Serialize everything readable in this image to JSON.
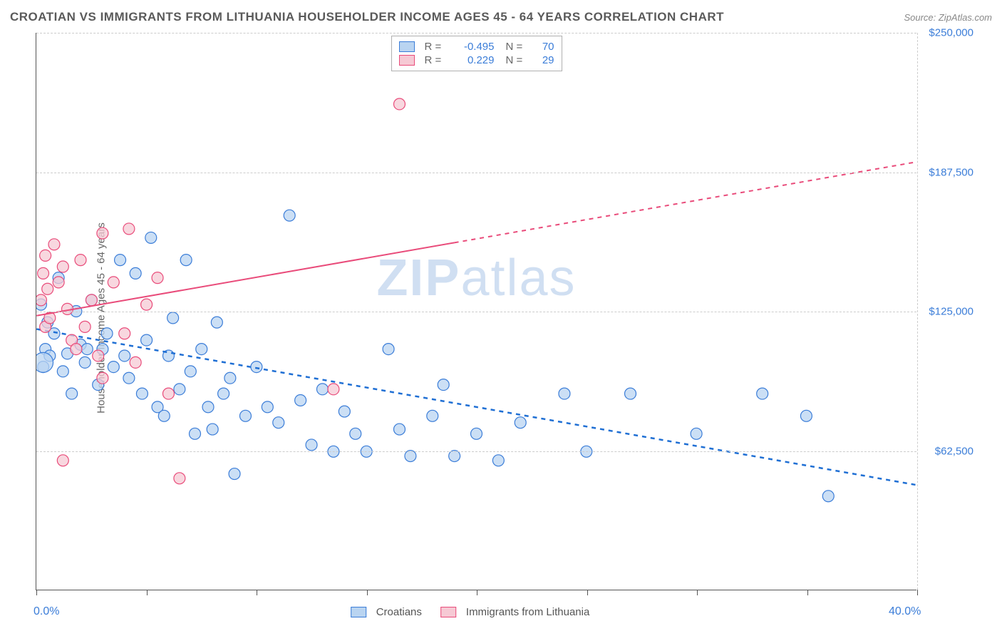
{
  "title": "CROATIAN VS IMMIGRANTS FROM LITHUANIA HOUSEHOLDER INCOME AGES 45 - 64 YEARS CORRELATION CHART",
  "source": "Source: ZipAtlas.com",
  "y_label": "Householder Income Ages 45 - 64 years",
  "watermark_bold": "ZIP",
  "watermark_rest": "atlas",
  "chart": {
    "type": "scatter-with-trend",
    "background_color": "#ffffff",
    "grid_color": "#cccccc",
    "axis_color": "#555555",
    "title_color": "#5a5a5a",
    "title_fontsize": 17,
    "label_fontsize": 15,
    "xlim": [
      0,
      40
    ],
    "ylim": [
      0,
      250000
    ],
    "x_ticks": [
      0,
      5,
      10,
      15,
      20,
      25,
      30,
      35,
      40
    ],
    "x_tick_labels_shown": {
      "0": "0.0%",
      "40": "40.0%"
    },
    "y_gridlines": [
      62500,
      125000,
      187500,
      250000
    ],
    "y_tick_labels": {
      "62500": "$62,500",
      "125000": "$125,000",
      "187500": "$187,500",
      "250000": "$250,000"
    },
    "tick_label_color": "#3b7dd8",
    "series": [
      {
        "name": "Croatians",
        "marker_color_fill": "#b9d4f1",
        "marker_color_stroke": "#3b7dd8",
        "marker_radius": 8,
        "marker_opacity": 0.75,
        "trend_color": "#1f6fd4",
        "trend_width": 2.5,
        "R": -0.495,
        "N": 70,
        "trend_start": {
          "x": 0,
          "y": 117000
        },
        "trend_end": {
          "x": 40,
          "y": 47000
        },
        "trend_extrapolate_from_x": 0,
        "points": [
          {
            "x": 0.2,
            "y": 128000
          },
          {
            "x": 0.3,
            "y": 100000
          },
          {
            "x": 0.4,
            "y": 108000
          },
          {
            "x": 0.5,
            "y": 120000
          },
          {
            "x": 0.6,
            "y": 105000
          },
          {
            "x": 0.8,
            "y": 115000
          },
          {
            "x": 1.0,
            "y": 140000
          },
          {
            "x": 1.2,
            "y": 98000
          },
          {
            "x": 1.4,
            "y": 106000
          },
          {
            "x": 1.6,
            "y": 88000
          },
          {
            "x": 1.8,
            "y": 125000
          },
          {
            "x": 2.0,
            "y": 110000
          },
          {
            "x": 2.2,
            "y": 102000
          },
          {
            "x": 2.5,
            "y": 130000
          },
          {
            "x": 2.8,
            "y": 92000
          },
          {
            "x": 3.0,
            "y": 108000
          },
          {
            "x": 3.2,
            "y": 115000
          },
          {
            "x": 3.5,
            "y": 100000
          },
          {
            "x": 3.8,
            "y": 148000
          },
          {
            "x": 4.0,
            "y": 105000
          },
          {
            "x": 4.2,
            "y": 95000
          },
          {
            "x": 4.5,
            "y": 142000
          },
          {
            "x": 4.8,
            "y": 88000
          },
          {
            "x": 5.0,
            "y": 112000
          },
          {
            "x": 5.2,
            "y": 158000
          },
          {
            "x": 5.5,
            "y": 82000
          },
          {
            "x": 5.8,
            "y": 78000
          },
          {
            "x": 6.0,
            "y": 105000
          },
          {
            "x": 6.2,
            "y": 122000
          },
          {
            "x": 6.5,
            "y": 90000
          },
          {
            "x": 6.8,
            "y": 148000
          },
          {
            "x": 7.0,
            "y": 98000
          },
          {
            "x": 7.2,
            "y": 70000
          },
          {
            "x": 7.5,
            "y": 108000
          },
          {
            "x": 7.8,
            "y": 82000
          },
          {
            "x": 8.0,
            "y": 72000
          },
          {
            "x": 8.2,
            "y": 120000
          },
          {
            "x": 8.5,
            "y": 88000
          },
          {
            "x": 8.8,
            "y": 95000
          },
          {
            "x": 9.0,
            "y": 52000
          },
          {
            "x": 9.5,
            "y": 78000
          },
          {
            "x": 10.0,
            "y": 100000
          },
          {
            "x": 10.5,
            "y": 82000
          },
          {
            "x": 11.0,
            "y": 75000
          },
          {
            "x": 11.5,
            "y": 168000
          },
          {
            "x": 12.0,
            "y": 85000
          },
          {
            "x": 12.5,
            "y": 65000
          },
          {
            "x": 13.0,
            "y": 90000
          },
          {
            "x": 13.5,
            "y": 62000
          },
          {
            "x": 14.0,
            "y": 80000
          },
          {
            "x": 14.5,
            "y": 70000
          },
          {
            "x": 15.0,
            "y": 62000
          },
          {
            "x": 16.0,
            "y": 108000
          },
          {
            "x": 16.5,
            "y": 72000
          },
          {
            "x": 17.0,
            "y": 60000
          },
          {
            "x": 18.0,
            "y": 78000
          },
          {
            "x": 18.5,
            "y": 92000
          },
          {
            "x": 19.0,
            "y": 60000
          },
          {
            "x": 20.0,
            "y": 70000
          },
          {
            "x": 21.0,
            "y": 58000
          },
          {
            "x": 22.0,
            "y": 75000
          },
          {
            "x": 24.0,
            "y": 88000
          },
          {
            "x": 25.0,
            "y": 62000
          },
          {
            "x": 27.0,
            "y": 88000
          },
          {
            "x": 30.0,
            "y": 70000
          },
          {
            "x": 33.0,
            "y": 88000
          },
          {
            "x": 35.0,
            "y": 78000
          },
          {
            "x": 36.0,
            "y": 42000
          },
          {
            "x": 0.3,
            "y": 102000,
            "r": 14
          },
          {
            "x": 2.3,
            "y": 108000
          }
        ]
      },
      {
        "name": "Immigrants from Lithuania",
        "marker_color_fill": "#f6c9d4",
        "marker_color_stroke": "#e94b7a",
        "marker_radius": 8,
        "marker_opacity": 0.75,
        "trend_color": "#e94b7a",
        "trend_width": 2,
        "R": 0.229,
        "N": 29,
        "trend_start": {
          "x": 0,
          "y": 123000
        },
        "trend_end": {
          "x": 40,
          "y": 192000
        },
        "trend_extrapolate_from_x": 19,
        "points": [
          {
            "x": 0.2,
            "y": 130000
          },
          {
            "x": 0.3,
            "y": 142000
          },
          {
            "x": 0.4,
            "y": 118000
          },
          {
            "x": 0.5,
            "y": 135000
          },
          {
            "x": 0.6,
            "y": 122000
          },
          {
            "x": 0.8,
            "y": 155000
          },
          {
            "x": 1.0,
            "y": 138000
          },
          {
            "x": 1.2,
            "y": 145000
          },
          {
            "x": 1.4,
            "y": 126000
          },
          {
            "x": 1.6,
            "y": 112000
          },
          {
            "x": 1.8,
            "y": 108000
          },
          {
            "x": 2.0,
            "y": 148000
          },
          {
            "x": 2.2,
            "y": 118000
          },
          {
            "x": 2.5,
            "y": 130000
          },
          {
            "x": 2.8,
            "y": 105000
          },
          {
            "x": 3.0,
            "y": 160000
          },
          {
            "x": 3.0,
            "y": 95000
          },
          {
            "x": 3.5,
            "y": 138000
          },
          {
            "x": 4.0,
            "y": 115000
          },
          {
            "x": 4.2,
            "y": 162000
          },
          {
            "x": 4.5,
            "y": 102000
          },
          {
            "x": 5.0,
            "y": 128000
          },
          {
            "x": 5.5,
            "y": 140000
          },
          {
            "x": 6.0,
            "y": 88000
          },
          {
            "x": 6.5,
            "y": 50000
          },
          {
            "x": 1.2,
            "y": 58000
          },
          {
            "x": 13.5,
            "y": 90000
          },
          {
            "x": 16.5,
            "y": 218000
          },
          {
            "x": 0.4,
            "y": 150000
          }
        ]
      }
    ],
    "legend_bottom": [
      {
        "label": "Croatians",
        "fill": "#b9d4f1",
        "stroke": "#3b7dd8"
      },
      {
        "label": "Immigrants from Lithuania",
        "fill": "#f6c9d4",
        "stroke": "#e94b7a"
      }
    ]
  }
}
